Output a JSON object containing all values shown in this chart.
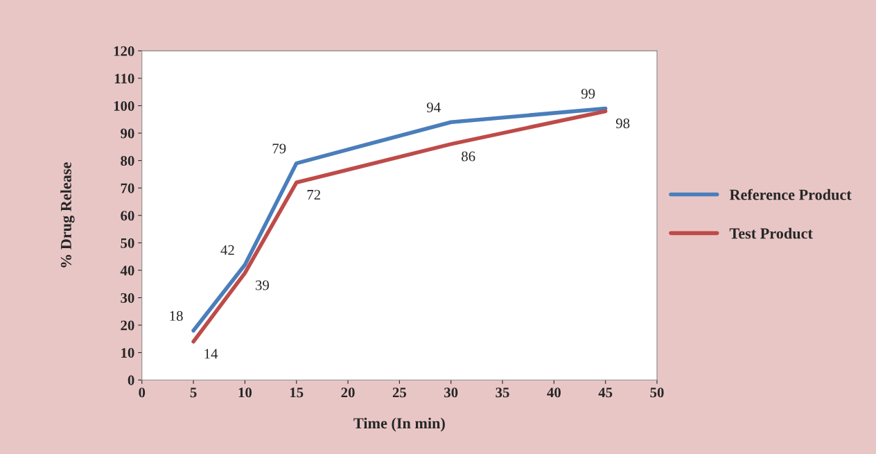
{
  "chart_data": {
    "type": "line",
    "xlabel": "Time (In min)",
    "ylabel": "% Drug Release",
    "x": [
      5,
      10,
      15,
      30,
      45
    ],
    "series": [
      {
        "name": "Reference Product",
        "color": "#4a7ebb",
        "values": [
          18,
          42,
          79,
          94,
          99
        ]
      },
      {
        "name": "Test Product",
        "color": "#be4b48",
        "values": [
          14,
          39,
          72,
          86,
          98
        ]
      }
    ],
    "xlim": [
      0,
      50
    ],
    "xticks": [
      0,
      5,
      10,
      15,
      20,
      25,
      30,
      35,
      40,
      45,
      50
    ],
    "ylim": [
      0,
      120
    ],
    "yticks": [
      0,
      10,
      20,
      30,
      40,
      50,
      60,
      70,
      80,
      90,
      100,
      110,
      120
    ],
    "data_labels": true,
    "grid": false,
    "legend": "right",
    "marker": "none",
    "line_style": "solid"
  }
}
